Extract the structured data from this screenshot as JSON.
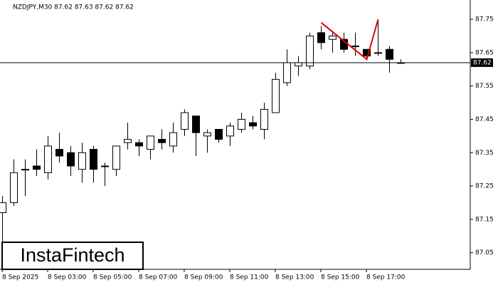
{
  "brand": "InstaFintech",
  "chart_data": {
    "type": "candlestick",
    "title": "NZDJPY,M30  87.62 87.63 87.62 87.62",
    "categories": [
      "8 Sep 2025",
      null,
      null,
      null,
      "8 Sep 03:00",
      null,
      null,
      null,
      "8 Sep 05:00",
      null,
      null,
      null,
      "8 Sep 07:00",
      null,
      null,
      null,
      "8 Sep 09:00",
      null,
      null,
      null,
      "8 Sep 11:00",
      null,
      null,
      null,
      "8 Sep 13:00",
      null,
      null,
      null,
      "8 Sep 15:00",
      null,
      null,
      null,
      "8 Sep 17:00",
      null,
      null,
      null
    ],
    "open": [
      87.17,
      87.2,
      87.3,
      87.31,
      87.29,
      87.36,
      87.35,
      87.3,
      87.36,
      87.31,
      87.3,
      87.38,
      87.38,
      87.36,
      87.39,
      87.37,
      87.42,
      87.46,
      87.4,
      87.42,
      87.4,
      87.42,
      87.44,
      87.42,
      87.47,
      87.56,
      87.61,
      87.61,
      87.71,
      87.69,
      87.69,
      87.67,
      87.66,
      87.65,
      87.66,
      87.62
    ],
    "high": [
      87.22,
      87.33,
      87.33,
      87.36,
      87.4,
      87.41,
      87.37,
      87.38,
      87.37,
      87.32,
      87.37,
      87.44,
      87.39,
      87.4,
      87.42,
      87.44,
      87.48,
      87.46,
      87.42,
      87.42,
      87.44,
      87.47,
      87.46,
      87.5,
      87.59,
      87.66,
      87.64,
      87.71,
      87.73,
      87.71,
      87.71,
      87.71,
      87.66,
      87.75,
      87.67,
      87.63
    ],
    "low": [
      87.02,
      87.19,
      87.22,
      87.28,
      87.27,
      87.32,
      87.28,
      87.26,
      87.26,
      87.25,
      87.28,
      87.36,
      87.34,
      87.33,
      87.36,
      87.35,
      87.4,
      87.34,
      87.35,
      87.38,
      87.37,
      87.41,
      87.42,
      87.39,
      87.47,
      87.55,
      87.58,
      87.6,
      87.66,
      87.65,
      87.65,
      87.64,
      87.63,
      87.64,
      87.59,
      87.62
    ],
    "close": [
      87.2,
      87.29,
      87.3,
      87.3,
      87.37,
      87.34,
      87.31,
      87.35,
      87.3,
      87.31,
      87.37,
      87.39,
      87.37,
      87.4,
      87.38,
      87.41,
      87.47,
      87.41,
      87.41,
      87.39,
      87.43,
      87.45,
      87.43,
      87.48,
      87.57,
      87.62,
      87.62,
      87.7,
      87.68,
      87.7,
      87.66,
      87.67,
      87.64,
      87.65,
      87.63,
      87.62
    ],
    "last_price": 87.62,
    "pattern": {
      "color": "#e00000",
      "x": [
        28,
        32,
        33
      ],
      "y": [
        87.74,
        87.63,
        87.75
      ]
    },
    "ylim": [
      87.0,
      87.808
    ],
    "yticks": [
      87.05,
      87.15,
      87.25,
      87.35,
      87.45,
      87.55,
      87.65,
      87.75
    ]
  }
}
